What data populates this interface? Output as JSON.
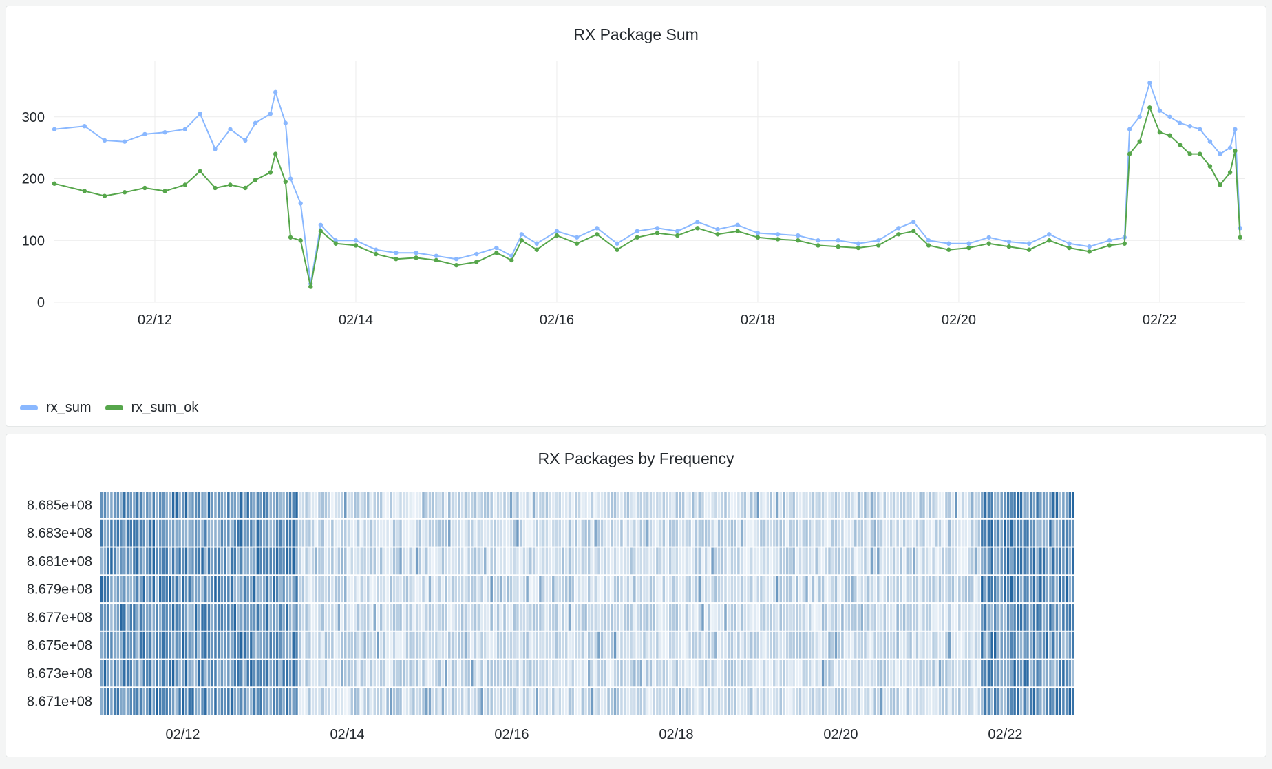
{
  "chart_data": [
    {
      "type": "line",
      "title": "RX Package Sum",
      "xlabel": "",
      "ylabel": "",
      "x_tick_labels": [
        "02/12",
        "02/14",
        "02/16",
        "02/18",
        "02/20",
        "02/22"
      ],
      "y_ticks": [
        0,
        100,
        200,
        300
      ],
      "ylim": [
        0,
        390
      ],
      "xlim_days": [
        11.0,
        22.85
      ],
      "grid": true,
      "legend": "bottom-left",
      "series": [
        {
          "name": "rx_sum",
          "color": "#8ab8ff",
          "points": [
            [
              11.0,
              280
            ],
            [
              11.3,
              285
            ],
            [
              11.5,
              262
            ],
            [
              11.7,
              260
            ],
            [
              11.9,
              272
            ],
            [
              12.1,
              275
            ],
            [
              12.3,
              280
            ],
            [
              12.45,
              305
            ],
            [
              12.6,
              248
            ],
            [
              12.75,
              280
            ],
            [
              12.9,
              262
            ],
            [
              13.0,
              290
            ],
            [
              13.15,
              305
            ],
            [
              13.2,
              340
            ],
            [
              13.3,
              290
            ],
            [
              13.35,
              200
            ],
            [
              13.45,
              160
            ],
            [
              13.55,
              30
            ],
            [
              13.65,
              125
            ],
            [
              13.8,
              100
            ],
            [
              14.0,
              100
            ],
            [
              14.2,
              85
            ],
            [
              14.4,
              80
            ],
            [
              14.6,
              80
            ],
            [
              14.8,
              75
            ],
            [
              15.0,
              70
            ],
            [
              15.2,
              78
            ],
            [
              15.4,
              88
            ],
            [
              15.55,
              75
            ],
            [
              15.65,
              110
            ],
            [
              15.8,
              95
            ],
            [
              16.0,
              115
            ],
            [
              16.2,
              105
            ],
            [
              16.4,
              120
            ],
            [
              16.6,
              95
            ],
            [
              16.8,
              115
            ],
            [
              17.0,
              120
            ],
            [
              17.2,
              115
            ],
            [
              17.4,
              130
            ],
            [
              17.6,
              118
            ],
            [
              17.8,
              125
            ],
            [
              18.0,
              112
            ],
            [
              18.2,
              110
            ],
            [
              18.4,
              108
            ],
            [
              18.6,
              100
            ],
            [
              18.8,
              100
            ],
            [
              19.0,
              95
            ],
            [
              19.2,
              100
            ],
            [
              19.4,
              120
            ],
            [
              19.55,
              130
            ],
            [
              19.7,
              100
            ],
            [
              19.9,
              95
            ],
            [
              20.1,
              95
            ],
            [
              20.3,
              105
            ],
            [
              20.5,
              98
            ],
            [
              20.7,
              95
            ],
            [
              20.9,
              110
            ],
            [
              21.1,
              95
            ],
            [
              21.3,
              90
            ],
            [
              21.5,
              100
            ],
            [
              21.65,
              105
            ],
            [
              21.7,
              280
            ],
            [
              21.8,
              300
            ],
            [
              21.9,
              355
            ],
            [
              22.0,
              310
            ],
            [
              22.1,
              300
            ],
            [
              22.2,
              290
            ],
            [
              22.3,
              285
            ],
            [
              22.4,
              280
            ],
            [
              22.5,
              260
            ],
            [
              22.6,
              240
            ],
            [
              22.7,
              250
            ],
            [
              22.75,
              280
            ],
            [
              22.8,
              120
            ]
          ]
        },
        {
          "name": "rx_sum_ok",
          "color": "#56a64b",
          "points": [
            [
              11.0,
              192
            ],
            [
              11.3,
              180
            ],
            [
              11.5,
              172
            ],
            [
              11.7,
              178
            ],
            [
              11.9,
              185
            ],
            [
              12.1,
              180
            ],
            [
              12.3,
              190
            ],
            [
              12.45,
              212
            ],
            [
              12.6,
              185
            ],
            [
              12.75,
              190
            ],
            [
              12.9,
              185
            ],
            [
              13.0,
              198
            ],
            [
              13.15,
              210
            ],
            [
              13.2,
              240
            ],
            [
              13.3,
              195
            ],
            [
              13.35,
              105
            ],
            [
              13.45,
              100
            ],
            [
              13.55,
              25
            ],
            [
              13.65,
              115
            ],
            [
              13.8,
              95
            ],
            [
              14.0,
              92
            ],
            [
              14.2,
              78
            ],
            [
              14.4,
              70
            ],
            [
              14.6,
              72
            ],
            [
              14.8,
              68
            ],
            [
              15.0,
              60
            ],
            [
              15.2,
              65
            ],
            [
              15.4,
              80
            ],
            [
              15.55,
              68
            ],
            [
              15.65,
              100
            ],
            [
              15.8,
              85
            ],
            [
              16.0,
              108
            ],
            [
              16.2,
              95
            ],
            [
              16.4,
              110
            ],
            [
              16.6,
              85
            ],
            [
              16.8,
              105
            ],
            [
              17.0,
              112
            ],
            [
              17.2,
              108
            ],
            [
              17.4,
              120
            ],
            [
              17.6,
              110
            ],
            [
              17.8,
              115
            ],
            [
              18.0,
              105
            ],
            [
              18.2,
              102
            ],
            [
              18.4,
              100
            ],
            [
              18.6,
              92
            ],
            [
              18.8,
              90
            ],
            [
              19.0,
              88
            ],
            [
              19.2,
              92
            ],
            [
              19.4,
              110
            ],
            [
              19.55,
              115
            ],
            [
              19.7,
              92
            ],
            [
              19.9,
              85
            ],
            [
              20.1,
              88
            ],
            [
              20.3,
              95
            ],
            [
              20.5,
              90
            ],
            [
              20.7,
              85
            ],
            [
              20.9,
              100
            ],
            [
              21.1,
              88
            ],
            [
              21.3,
              82
            ],
            [
              21.5,
              92
            ],
            [
              21.65,
              95
            ],
            [
              21.7,
              240
            ],
            [
              21.8,
              260
            ],
            [
              21.9,
              315
            ],
            [
              22.0,
              275
            ],
            [
              22.1,
              270
            ],
            [
              22.2,
              255
            ],
            [
              22.3,
              240
            ],
            [
              22.4,
              240
            ],
            [
              22.5,
              220
            ],
            [
              22.6,
              190
            ],
            [
              22.7,
              210
            ],
            [
              22.75,
              245
            ],
            [
              22.8,
              105
            ]
          ]
        }
      ]
    },
    {
      "type": "heatmap",
      "title": "RX Packages by Frequency",
      "xlabel": "",
      "ylabel": "",
      "x_tick_labels": [
        "02/12",
        "02/14",
        "02/16",
        "02/18",
        "02/20",
        "02/22"
      ],
      "y_categories": [
        "8.685e+08",
        "8.683e+08",
        "8.681e+08",
        "8.679e+08",
        "8.677e+08",
        "8.675e+08",
        "8.673e+08",
        "8.671e+08"
      ],
      "xlim_days": [
        11.0,
        22.85
      ],
      "color_scale": [
        "#f5f9fd",
        "#0b5394"
      ],
      "intensity_by_period": [
        {
          "from_day": 11.0,
          "to_day": 13.4,
          "level": "high"
        },
        {
          "from_day": 13.4,
          "to_day": 21.7,
          "level": "low"
        },
        {
          "from_day": 21.7,
          "to_day": 22.85,
          "level": "high"
        }
      ],
      "legend": "none"
    }
  ]
}
